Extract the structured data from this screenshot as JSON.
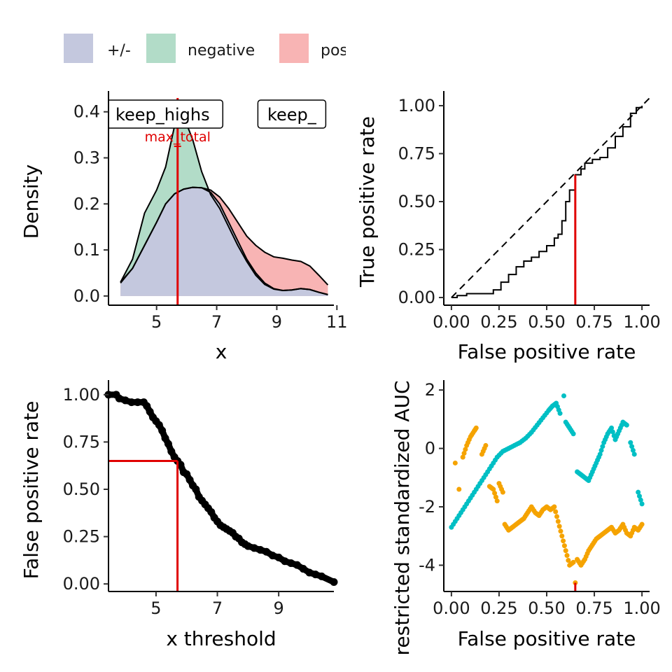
{
  "colors": {
    "pm": "#c4c8de",
    "negative": "#b2dcc8",
    "positive": "#f8b4b4",
    "accent_red": "#e00000",
    "teal": "#00bfc4",
    "orange": "#f5a300",
    "ink": "#000000"
  },
  "legend": {
    "items": [
      {
        "label": "+/-",
        "color": "#c4c8de"
      },
      {
        "label": "negative",
        "color": "#b2dcc8"
      },
      {
        "label": "pos",
        "color": "#f8b4b4"
      }
    ]
  },
  "chart_data": [
    {
      "id": "density",
      "type": "area",
      "xlabel": "x",
      "ylabel": "Density",
      "xlim": [
        3.4,
        10.9
      ],
      "ylim": [
        -0.02,
        0.43
      ],
      "xticks": [
        5,
        7,
        9,
        11
      ],
      "yticks": [
        0.0,
        0.1,
        0.2,
        0.3,
        0.4
      ],
      "ytick_labels": [
        "0.0",
        "0.1",
        "0.2",
        "0.3",
        "0.4"
      ],
      "threshold": 5.7,
      "annotation": "max_total",
      "annotation_pos": [
        5.7,
        0.33
      ],
      "box_labels": [
        {
          "text": "keep_highs",
          "x": 5.2,
          "y": 0.395
        },
        {
          "text": "keep_",
          "x": 9.5,
          "y": 0.395
        }
      ],
      "series": [
        {
          "name": "+/-",
          "x": [
            3.8,
            4.2,
            4.6,
            5.0,
            5.3,
            5.6,
            5.9,
            6.2,
            6.5,
            6.8,
            7.1,
            7.4,
            7.7,
            8.0,
            8.3,
            8.6,
            8.9,
            9.2,
            9.5,
            9.8,
            10.1,
            10.4,
            10.7
          ],
          "values": [
            0.028,
            0.06,
            0.11,
            0.16,
            0.2,
            0.222,
            0.232,
            0.236,
            0.235,
            0.225,
            0.2,
            0.16,
            0.12,
            0.08,
            0.05,
            0.028,
            0.016,
            0.012,
            0.013,
            0.016,
            0.014,
            0.008,
            0.003
          ]
        },
        {
          "name": "negative",
          "x": [
            3.8,
            4.2,
            4.6,
            5.0,
            5.3,
            5.6,
            5.9,
            6.2,
            6.5,
            6.8,
            7.1,
            7.4,
            7.7,
            8.0,
            8.3,
            8.6,
            8.9,
            9.2,
            9.5,
            9.8,
            10.1,
            10.4,
            10.7
          ],
          "values": [
            0.03,
            0.08,
            0.18,
            0.23,
            0.28,
            0.37,
            0.39,
            0.34,
            0.27,
            0.22,
            0.19,
            0.15,
            0.11,
            0.075,
            0.045,
            0.025,
            0.015,
            0.012,
            0.013,
            0.016,
            0.014,
            0.008,
            0.003
          ]
        },
        {
          "name": "pos",
          "x": [
            3.8,
            4.2,
            4.6,
            5.0,
            5.3,
            5.6,
            5.9,
            6.2,
            6.5,
            6.8,
            7.1,
            7.4,
            7.7,
            8.0,
            8.3,
            8.6,
            8.9,
            9.2,
            9.5,
            9.8,
            10.1,
            10.4,
            10.7
          ],
          "values": [
            0.03,
            0.06,
            0.11,
            0.16,
            0.2,
            0.222,
            0.232,
            0.236,
            0.235,
            0.23,
            0.215,
            0.19,
            0.16,
            0.13,
            0.11,
            0.095,
            0.085,
            0.082,
            0.078,
            0.075,
            0.065,
            0.045,
            0.024
          ]
        }
      ]
    },
    {
      "id": "roc",
      "type": "line",
      "xlabel": "False positive rate",
      "ylabel": "True positive rate",
      "xlim": [
        -0.04,
        1.04
      ],
      "ylim": [
        -0.04,
        1.04
      ],
      "xticks": [
        0.0,
        0.25,
        0.5,
        0.75,
        1.0
      ],
      "xtick_labels": [
        "0.00",
        "0.25",
        "0.50",
        "0.75",
        "1.00"
      ],
      "yticks": [
        0.0,
        0.25,
        0.5,
        0.75,
        1.0
      ],
      "ytick_labels": [
        "0.00",
        "0.25",
        "0.50",
        "0.75",
        "1.00"
      ],
      "diagonal": true,
      "threshold_fpr": 0.65,
      "threshold_tpr": 0.64,
      "series": [
        {
          "x": [
            0.0,
            0.03,
            0.08,
            0.13,
            0.18,
            0.22,
            0.26,
            0.3,
            0.34,
            0.38,
            0.42,
            0.46,
            0.5,
            0.54,
            0.56,
            0.58,
            0.6,
            0.62,
            0.65,
            0.68,
            0.7,
            0.74,
            0.78,
            0.82,
            0.86,
            0.9,
            0.94,
            0.97,
            1.0
          ],
          "values": [
            0.0,
            0.01,
            0.02,
            0.02,
            0.02,
            0.04,
            0.08,
            0.12,
            0.16,
            0.19,
            0.21,
            0.24,
            0.27,
            0.31,
            0.33,
            0.4,
            0.5,
            0.56,
            0.64,
            0.67,
            0.7,
            0.72,
            0.73,
            0.78,
            0.84,
            0.89,
            0.96,
            0.99,
            1.0
          ]
        }
      ]
    },
    {
      "id": "fpr_threshold",
      "type": "scatter",
      "xlabel": "x threshold",
      "ylabel": "False positive rate",
      "xlim": [
        3.45,
        10.8
      ],
      "ylim": [
        -0.04,
        1.04
      ],
      "xticks": [
        5,
        7,
        9
      ],
      "yticks": [
        0.0,
        0.25,
        0.5,
        0.75,
        1.0
      ],
      "ytick_labels": [
        "0.00",
        "0.25",
        "0.50",
        "0.75",
        "1.00"
      ],
      "threshold_x": 5.7,
      "threshold_y": 0.65,
      "series": [
        {
          "x": [
            3.45,
            3.7,
            3.8,
            4.0,
            4.2,
            4.4,
            4.6,
            4.7,
            4.8,
            4.9,
            5.0,
            5.1,
            5.2,
            5.3,
            5.4,
            5.5,
            5.6,
            5.7,
            5.8,
            5.9,
            6.0,
            6.1,
            6.2,
            6.3,
            6.4,
            6.5,
            6.6,
            6.7,
            6.8,
            6.9,
            7.0,
            7.1,
            7.2,
            7.3,
            7.4,
            7.5,
            7.6,
            7.7,
            7.8,
            7.9,
            8.0,
            8.2,
            8.4,
            8.6,
            8.8,
            9.0,
            9.2,
            9.4,
            9.6,
            9.8,
            10.0,
            10.2,
            10.4,
            10.8
          ],
          "values": [
            1.0,
            1.0,
            0.98,
            0.97,
            0.96,
            0.96,
            0.96,
            0.94,
            0.91,
            0.88,
            0.86,
            0.84,
            0.81,
            0.77,
            0.74,
            0.7,
            0.67,
            0.65,
            0.63,
            0.59,
            0.58,
            0.55,
            0.52,
            0.5,
            0.46,
            0.44,
            0.42,
            0.4,
            0.38,
            0.35,
            0.33,
            0.31,
            0.3,
            0.29,
            0.28,
            0.27,
            0.25,
            0.24,
            0.22,
            0.21,
            0.2,
            0.19,
            0.18,
            0.17,
            0.15,
            0.14,
            0.12,
            0.11,
            0.1,
            0.08,
            0.06,
            0.05,
            0.04,
            0.01
          ]
        }
      ]
    },
    {
      "id": "auc",
      "type": "scatter",
      "xlabel": "False positive rate",
      "ylabel": "restricted standardized AUC",
      "xlim": [
        -0.04,
        1.04
      ],
      "ylim": [
        -4.9,
        2.1
      ],
      "xticks": [
        0.0,
        0.25,
        0.5,
        0.75,
        1.0
      ],
      "xtick_labels": [
        "0.00",
        "0.25",
        "0.50",
        "0.75",
        "1.00"
      ],
      "yticks": [
        -4,
        -2,
        0,
        2
      ],
      "ytick_labels": [
        "-4",
        "-2",
        "0",
        "2"
      ],
      "threshold_fpr": 0.65,
      "series": [
        {
          "x": [
            0.0,
            0.03,
            0.06,
            0.09,
            0.12,
            0.15,
            0.18,
            0.21,
            0.24,
            0.27,
            0.3,
            0.33,
            0.36,
            0.39,
            0.42,
            0.45,
            0.48,
            0.51,
            0.53,
            0.55,
            0.57,
            0.59,
            0.6,
            0.62,
            0.64,
            0.66,
            0.68,
            0.7,
            0.72,
            0.74,
            0.76,
            0.78,
            0.8,
            0.82,
            0.84,
            0.86,
            0.88,
            0.9,
            0.92,
            0.94,
            0.96,
            0.98,
            1.0
          ],
          "values": [
            -2.7,
            -2.4,
            -2.1,
            -1.8,
            -1.5,
            -1.2,
            -0.9,
            -0.6,
            -0.3,
            -0.1,
            0.0,
            0.1,
            0.2,
            0.35,
            0.55,
            0.8,
            1.05,
            1.3,
            1.45,
            1.55,
            1.2,
            1.8,
            0.9,
            0.7,
            0.5,
            -0.8,
            -0.9,
            -1.0,
            -1.1,
            -0.8,
            -0.5,
            -0.2,
            0.2,
            0.5,
            0.7,
            0.3,
            0.6,
            0.9,
            0.8,
            0.2,
            -0.2,
            -1.5,
            -1.9
          ]
        },
        {
          "x": [
            0.02,
            0.04,
            0.06,
            0.08,
            0.1,
            0.12,
            0.13,
            0.16,
            0.18,
            0.2,
            0.22,
            0.24,
            0.25,
            0.27,
            0.28,
            0.3,
            0.32,
            0.34,
            0.36,
            0.38,
            0.4,
            0.42,
            0.44,
            0.46,
            0.48,
            0.5,
            0.52,
            0.54,
            0.56,
            0.58,
            0.6,
            0.62,
            0.64,
            0.65,
            0.66,
            0.68,
            0.7,
            0.72,
            0.74,
            0.76,
            0.78,
            0.8,
            0.82,
            0.84,
            0.86,
            0.88,
            0.9,
            0.92,
            0.94,
            0.96,
            0.98,
            1.0
          ],
          "values": [
            -0.5,
            -1.4,
            -0.3,
            0.1,
            0.4,
            0.6,
            0.7,
            -0.2,
            0.1,
            -1.3,
            -1.4,
            -1.8,
            -1.2,
            -1.5,
            -2.6,
            -2.8,
            -2.7,
            -2.6,
            -2.5,
            -2.4,
            -2.2,
            -2.0,
            -2.2,
            -2.3,
            -2.1,
            -2.0,
            -2.1,
            -2.0,
            -2.5,
            -3.0,
            -3.5,
            -4.0,
            -3.9,
            -4.6,
            -3.8,
            -4.0,
            -3.8,
            -3.5,
            -3.3,
            -3.1,
            -3.0,
            -2.9,
            -2.8,
            -2.7,
            -2.9,
            -2.8,
            -2.6,
            -2.9,
            -3.0,
            -2.7,
            -2.8,
            -2.6
          ]
        }
      ]
    }
  ]
}
